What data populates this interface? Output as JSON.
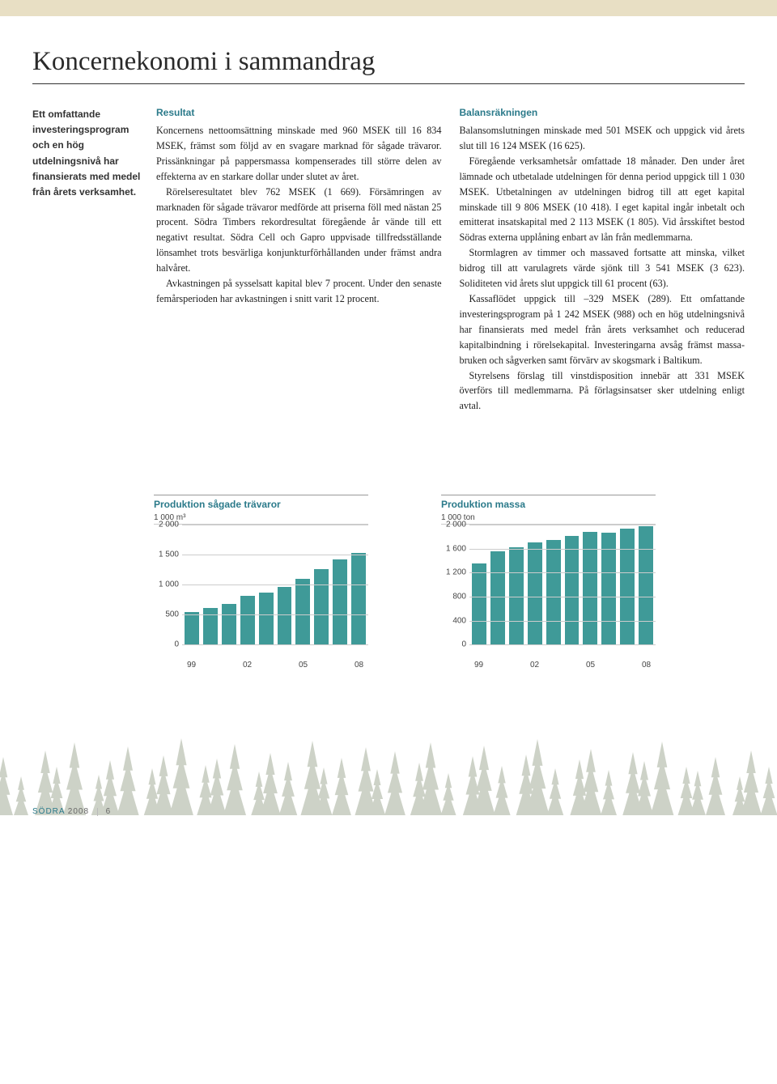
{
  "page": {
    "title": "Koncernekonomi i sammandrag",
    "pullquote": "Ett omfattande investerings­program och en hög utdelningsnivå har finansierats med medel från årets verksamhet."
  },
  "resultat": {
    "heading": "Resultat",
    "p1": "Koncernens nettoomsättning minskade med 960 MSEK till 16 834 MSEK, främst som följd av en svagare marknad för sågade trävaror. Prissänkningar på pappersmassa kompenserades till större delen av effekterna av en starkare dollar under slutet av året.",
    "p2": "Rörelseresultatet blev 762 MSEK (1 669). Försämringen av marknaden för sågade trävaror medförde att priserna föll med nästan 25 procent. Södra Timbers rekordresultat föregående år vände till ett negativt resultat. Södra Cell och Gapro uppvisade tillfredsställande lönsamhet trots besvärliga konjunkturförhållanden under främst andra halvåret.",
    "p3": "Avkastningen på sysselsatt kapital blev 7 procent. Under den senaste femårsperioden har avkastningen i snitt varit 12 procent."
  },
  "balans": {
    "heading": "Balansräkningen",
    "p1": "Balansomslutningen minskade med 501 MSEK och uppgick vid årets slut till 16 124 MSEK (16 625).",
    "p2": "Föregående verksamhetsår omfattade 18 månader. Den under året lämnade och utbetalade utdelningen för denna period uppgick till 1 030 MSEK. Utbetalningen av utdelningen bidrog till att eget kapital minskade till 9 806 MSEK (10 418). I eget kapital ingår inbetalt och emitterat insatskapital med 2 113 MSEK (1 805). Vid årsskiftet bestod Södras externa upplåning enbart av lån från medlemmarna.",
    "p3": "Stormlagren av timmer och massaved fortsatte att minska, vilket bidrog till att varulagrets värde sjönk till 3 541 MSEK (3 623). Soliditeten vid årets slut uppgick till 61 procent (63).",
    "p4": "Kassaflödet uppgick till –329 MSEK (289). Ett omfat­tande investeringsprogram på 1 242 MSEK (988) och en hög utdelningsnivå har finansierats med medel från årets verksamhet och reducerad kapitalbindning i rörelsekapital. Investeringarna avsåg främst massa­bruken och sågverken samt förvärv av skogsmark i Baltikum.",
    "p5": "Styrelsens förslag till vinstdisposition innebär att 331 MSEK överförs till medlemmarna. På förlagsin­satser sker utdelning enligt avtal."
  },
  "chart1": {
    "title": "Produktion sågade trävaror",
    "unit": "1 000 m³",
    "type": "bar",
    "bar_color": "#3f9a98",
    "background_color": "#ffffff",
    "grid_color": "#cccccc",
    "ylim": [
      0,
      2000
    ],
    "ytick_step": 500,
    "yticks": [
      "2 000",
      "1 500",
      "1 000",
      "500",
      "0"
    ],
    "x_labels": [
      "99",
      "02",
      "05",
      "08"
    ],
    "values": [
      550,
      610,
      680,
      820,
      870,
      960,
      1100,
      1260,
      1420,
      1530
    ]
  },
  "chart2": {
    "title": "Produktion massa",
    "unit": "1 000 ton",
    "type": "bar",
    "bar_color": "#3f9a98",
    "background_color": "#ffffff",
    "grid_color": "#cccccc",
    "ylim": [
      0,
      2000
    ],
    "ytick_step": 400,
    "yticks": [
      "2 000",
      "1 600",
      "1 200",
      "800",
      "400",
      "0"
    ],
    "x_labels": [
      "99",
      "02",
      "05",
      "08"
    ],
    "values": [
      1350,
      1560,
      1620,
      1700,
      1750,
      1810,
      1880,
      1870,
      1930,
      1980
    ]
  },
  "footer": {
    "brand": "SÖDRA",
    "year": "2008",
    "page": "6"
  },
  "forest_color": "#6f7d5f"
}
